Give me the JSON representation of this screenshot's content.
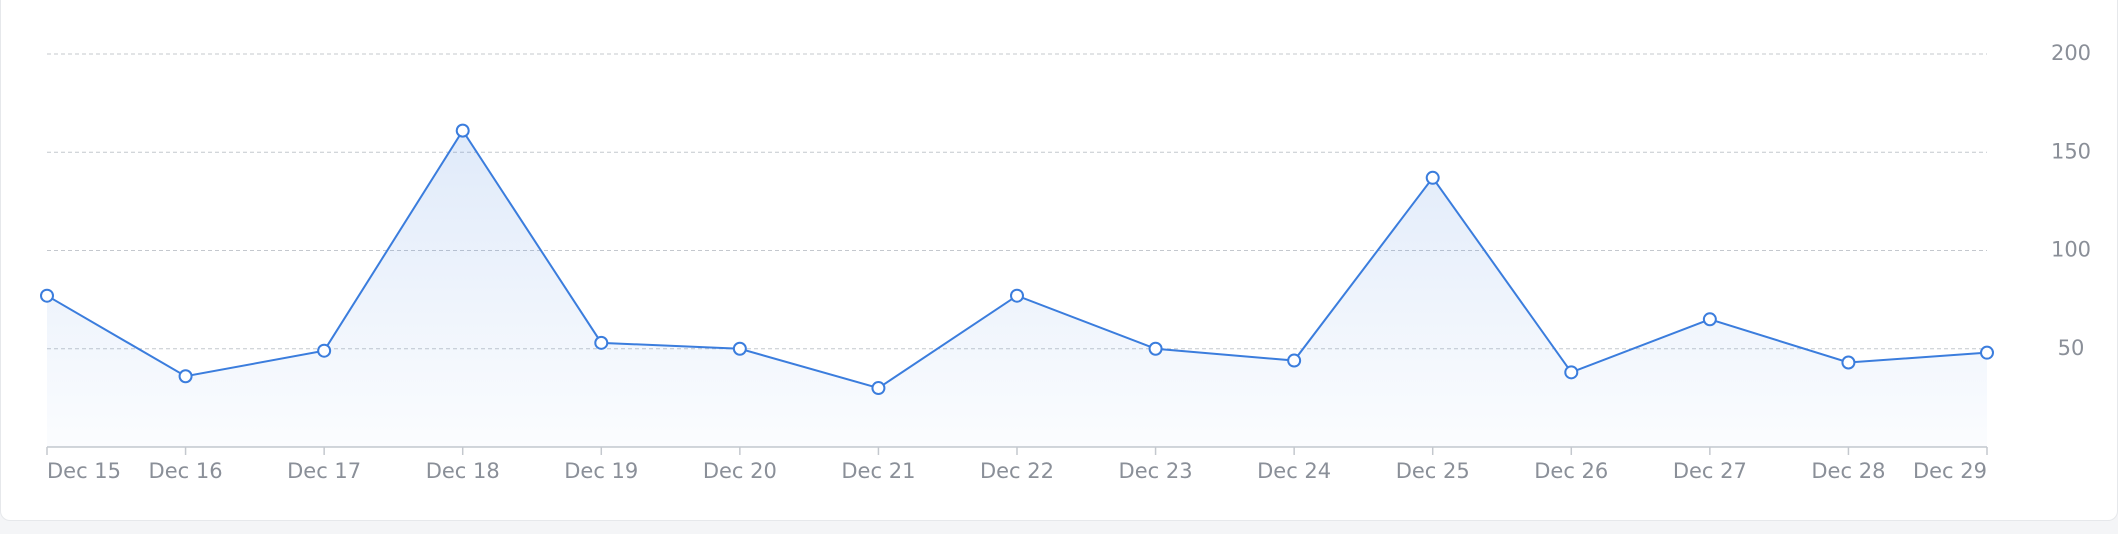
{
  "chart_data": {
    "type": "line",
    "categories": [
      "Dec 15",
      "Dec 16",
      "Dec 17",
      "Dec 18",
      "Dec 19",
      "Dec 20",
      "Dec 21",
      "Dec 22",
      "Dec 23",
      "Dec 24",
      "Dec 25",
      "Dec 26",
      "Dec 27",
      "Dec 28",
      "Dec 29"
    ],
    "values": [
      77,
      36,
      49,
      161,
      53,
      50,
      30,
      77,
      50,
      44,
      137,
      38,
      65,
      43,
      48
    ],
    "color": "#3b7ddd",
    "ylim": [
      0,
      200
    ],
    "yticks": [
      50,
      100,
      150,
      200
    ],
    "grid": true
  }
}
